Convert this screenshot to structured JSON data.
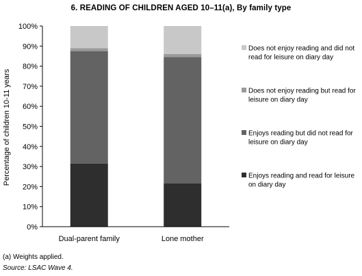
{
  "chart_data": {
    "type": "bar",
    "stacked": true,
    "title": "6.   READING OF CHILDREN AGED 10–11(a), By family type",
    "ylabel": "Percentage of children 10-11 years",
    "xlabel": "",
    "ylim": [
      0,
      100
    ],
    "yticks": [
      "0%",
      "10%",
      "20%",
      "30%",
      "40%",
      "50%",
      "60%",
      "70%",
      "80%",
      "90%",
      "100%"
    ],
    "grid": false,
    "legend_position": "right",
    "categories": [
      "Dual-parent family",
      "Lone mother"
    ],
    "series": [
      {
        "name": "Enjoys reading and read for leisure on diary day",
        "color": "#2e2e2e",
        "values": [
          31.5,
          21.5
        ]
      },
      {
        "name": "Enjoys reading but did not read for leisure on diary day",
        "color": "#636363",
        "values": [
          56,
          63
        ]
      },
      {
        "name": "Does not enjoy reading but read for leisure on diary day",
        "color": "#9a9a9a",
        "values": [
          1.5,
          1.5
        ]
      },
      {
        "name": "Does not enjoy reading and did not read for leisure on diary day",
        "color": "#c8c8c8",
        "values": [
          11,
          14
        ]
      }
    ]
  },
  "footnote": "(a) Weights applied.",
  "source": "Source: LSAC Wave 4."
}
